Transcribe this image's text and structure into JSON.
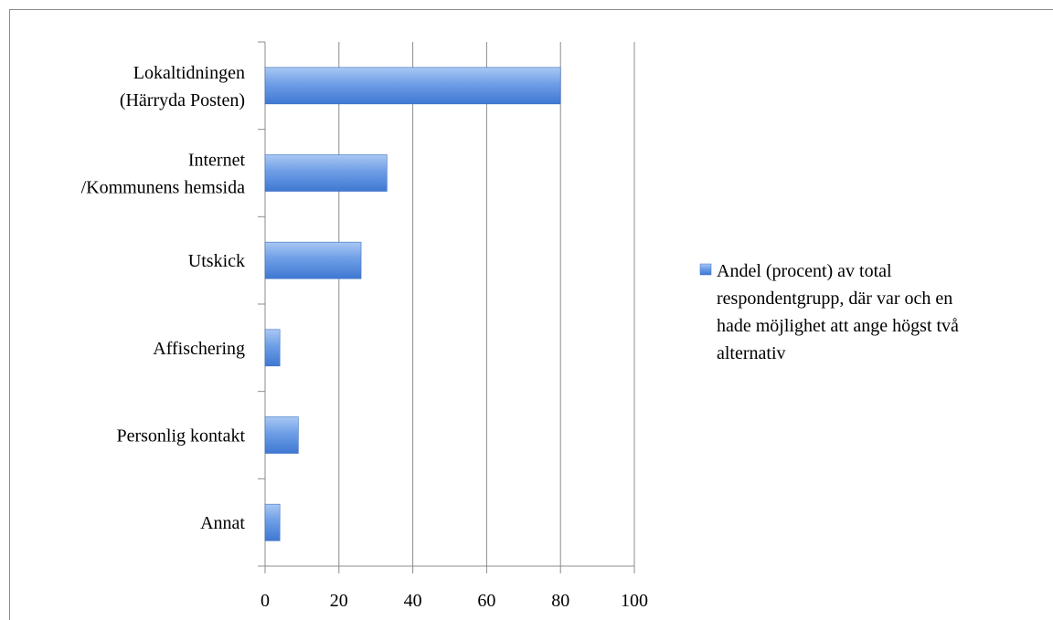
{
  "chart_data": {
    "type": "bar",
    "orientation": "horizontal",
    "categories": [
      [
        "Lokaltidningen",
        "(Härryda Posten)"
      ],
      [
        "Internet",
        "/Kommunens hemsida"
      ],
      [
        "Utskick"
      ],
      [
        "Affischering"
      ],
      [
        "Personlig kontakt"
      ],
      [
        "Annat"
      ]
    ],
    "series": [
      {
        "name": "Andel (procent) av total respondentgrupp, där var och en hade möjlighet att ange högst två alternativ",
        "name_lines": [
          "Andel (procent) av total",
          "respondentgrupp, där var och en",
          "hade möjlighet att ange högst två",
          "alternativ"
        ],
        "values": [
          80,
          33,
          26,
          4,
          9,
          4
        ],
        "color": "#4f86d8"
      }
    ],
    "xlim": [
      0,
      100
    ],
    "xticks": [
      "0",
      "20",
      "40",
      "60",
      "80",
      "100"
    ],
    "grid": true,
    "legend": "right"
  }
}
